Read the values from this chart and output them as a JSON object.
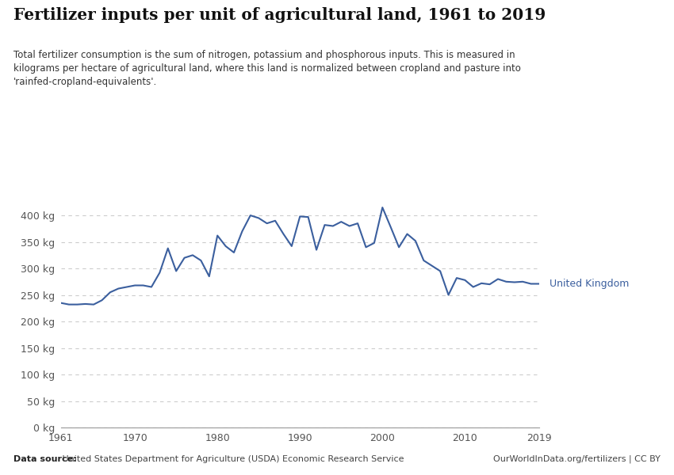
{
  "title": "Fertilizer inputs per unit of agricultural land, 1961 to 2019",
  "subtitle": "Total fertilizer consumption is the sum of nitrogen, potassium and phosphorous inputs. This is measured in\nkilograms per hectare of agricultural land, where this land is normalized between cropland and pasture into\n'rainfed-cropland-equivalents'.",
  "datasource_bold": "Data source:",
  "datasource_rest": " United States Department for Agriculture (USDA) Economic Research Service",
  "rights": "OurWorldInData.org/fertilizers | CC BY",
  "line_label": "United Kingdom",
  "line_color": "#3b5f9e",
  "background_color": "#ffffff",
  "years": [
    1961,
    1962,
    1963,
    1964,
    1965,
    1966,
    1967,
    1968,
    1969,
    1970,
    1971,
    1972,
    1973,
    1974,
    1975,
    1976,
    1977,
    1978,
    1979,
    1980,
    1981,
    1982,
    1983,
    1984,
    1985,
    1986,
    1987,
    1988,
    1989,
    1990,
    1991,
    1992,
    1993,
    1994,
    1995,
    1996,
    1997,
    1998,
    1999,
    2000,
    2001,
    2002,
    2003,
    2004,
    2005,
    2006,
    2007,
    2008,
    2009,
    2010,
    2011,
    2012,
    2013,
    2014,
    2015,
    2016,
    2017,
    2018,
    2019
  ],
  "values": [
    235,
    232,
    232,
    233,
    232,
    240,
    255,
    262,
    265,
    268,
    268,
    265,
    292,
    338,
    295,
    320,
    325,
    315,
    285,
    362,
    342,
    330,
    370,
    400,
    395,
    385,
    390,
    365,
    342,
    398,
    397,
    335,
    382,
    380,
    388,
    380,
    385,
    340,
    348,
    415,
    378,
    340,
    365,
    352,
    315,
    305,
    295,
    250,
    282,
    278,
    265,
    272,
    270,
    280,
    275,
    274,
    275,
    271,
    271
  ],
  "ylim": [
    0,
    430
  ],
  "yticks": [
    0,
    50,
    100,
    150,
    200,
    250,
    300,
    350,
    400
  ],
  "xticks": [
    1961,
    1970,
    1980,
    1990,
    2000,
    2010,
    2019
  ],
  "grid_color": "#cccccc",
  "tick_color": "#555555",
  "label_color": "#555555",
  "owid_box_bg": "#1a3a5c",
  "owid_box_red": "#c0392b"
}
